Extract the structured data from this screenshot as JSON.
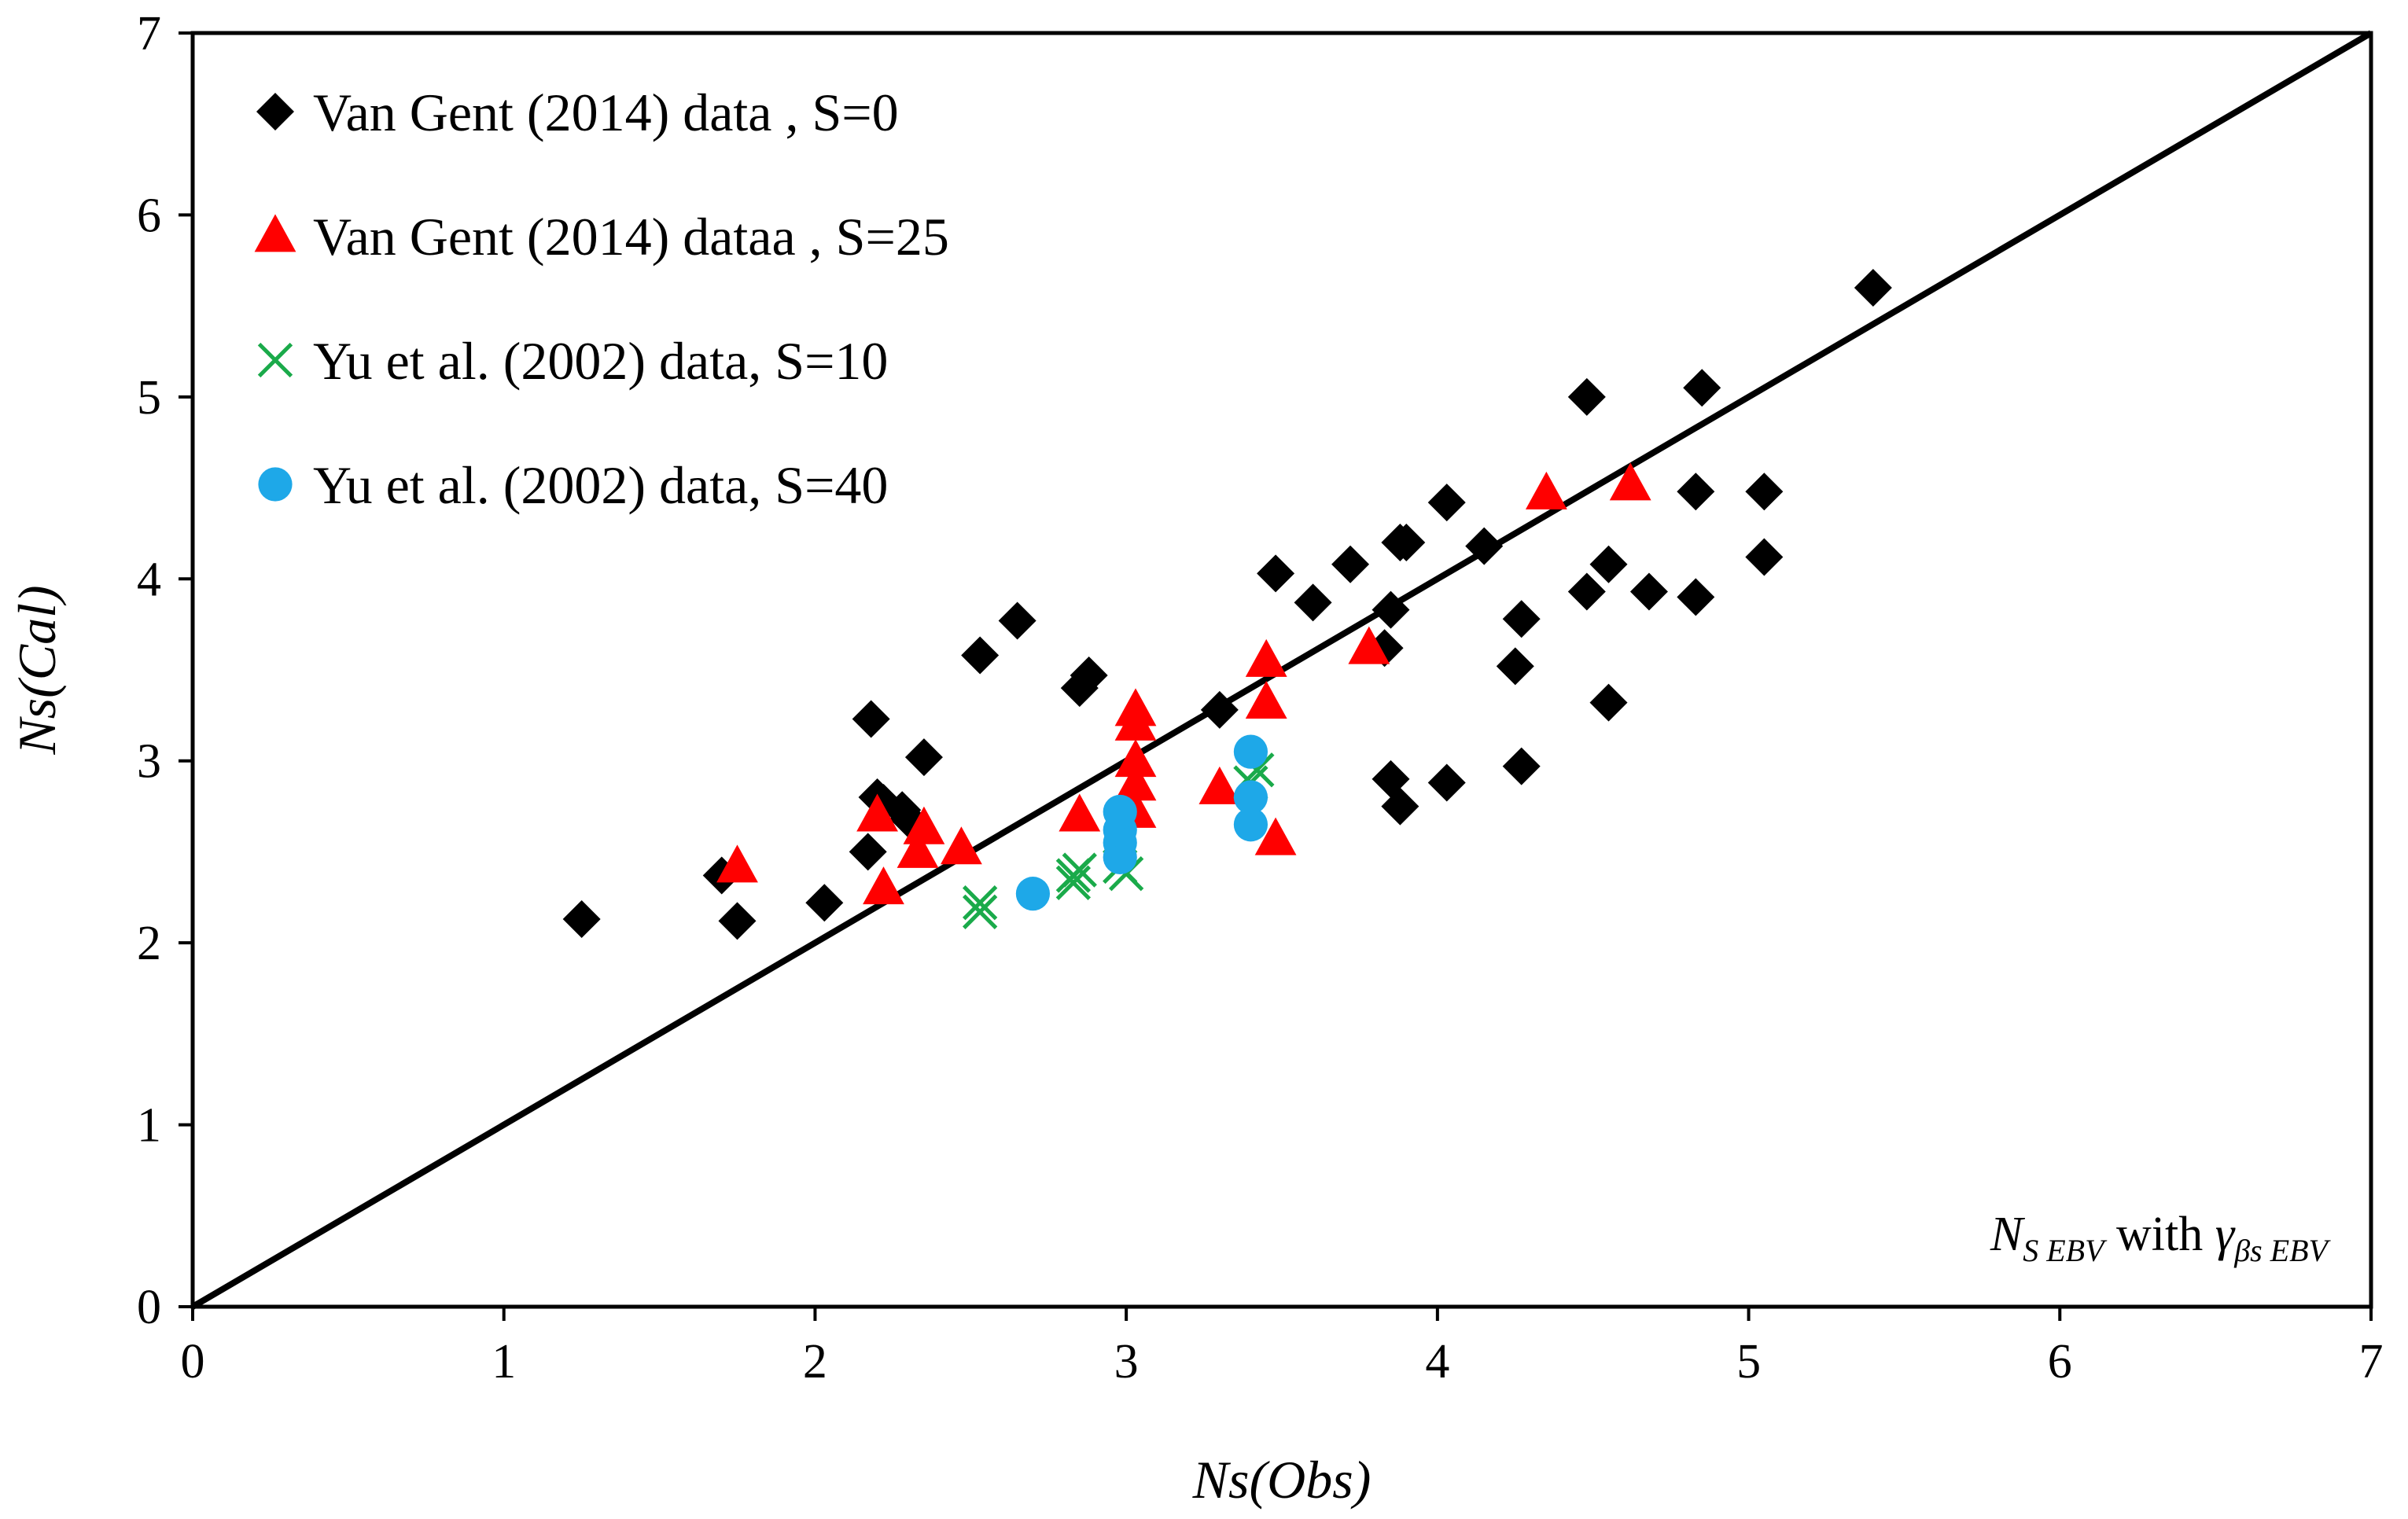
{
  "chart_data": {
    "type": "scatter",
    "title": "",
    "xlabel": "Ns(Obs)",
    "ylabel": "Ns(Cal)",
    "xlim": [
      0,
      7
    ],
    "ylim": [
      0,
      7
    ],
    "xticks": [
      "0",
      "1",
      "2",
      "3",
      "4",
      "5",
      "6",
      "7"
    ],
    "yticks": [
      "0",
      "1",
      "2",
      "3",
      "4",
      "5",
      "6",
      "7"
    ],
    "grid": false,
    "legend_position": "top-left",
    "reference_line": {
      "name": "1:1 line",
      "x": [
        0,
        7
      ],
      "y": [
        0,
        7
      ],
      "color": "#000000"
    },
    "annotation": {
      "n": "N",
      "n_sub": "S EBV",
      "with": " with ",
      "gamma": "γ",
      "gamma_sub": "βs EBV"
    },
    "series": [
      {
        "name": "Van Gent  (2014) data , S=0",
        "marker": "diamond",
        "color": "#000000",
        "x": [
          1.25,
          1.7,
          1.75,
          2.03,
          2.17,
          2.18,
          2.2,
          2.22,
          2.28,
          2.3,
          2.35,
          2.53,
          2.65,
          2.85,
          2.88,
          3.3,
          3.48,
          3.6,
          3.72,
          3.83,
          3.85,
          3.85,
          3.88,
          3.88,
          3.9,
          4.03,
          4.03,
          4.15,
          4.25,
          4.27,
          4.27,
          4.48,
          4.48,
          4.55,
          4.55,
          4.68,
          4.83,
          4.83,
          4.85,
          5.05,
          5.05,
          5.4
        ],
        "y": [
          2.13,
          2.37,
          2.12,
          2.22,
          2.5,
          3.23,
          2.8,
          2.77,
          2.73,
          2.68,
          3.02,
          3.58,
          3.77,
          3.4,
          3.47,
          3.28,
          4.03,
          3.87,
          4.08,
          3.62,
          3.83,
          2.9,
          2.75,
          4.2,
          4.2,
          4.42,
          2.88,
          4.18,
          3.52,
          3.78,
          2.97,
          3.93,
          5.0,
          4.08,
          3.32,
          3.93,
          4.48,
          3.9,
          5.05,
          4.12,
          4.48,
          5.6
        ]
      },
      {
        "name": "Van Gent  (2014) dataa , S=25",
        "marker": "triangle",
        "color": "#ff0000",
        "x": [
          1.75,
          2.2,
          2.22,
          2.33,
          2.35,
          2.47,
          2.85,
          3.03,
          3.03,
          3.03,
          3.03,
          3.03,
          3.3,
          3.45,
          3.45,
          3.48,
          3.78,
          4.35,
          4.62
        ],
        "y": [
          2.42,
          2.7,
          2.3,
          2.5,
          2.63,
          2.52,
          2.7,
          3.28,
          3.2,
          3.0,
          2.87,
          2.72,
          2.85,
          3.55,
          3.32,
          2.57,
          3.62,
          4.47,
          4.52
        ]
      },
      {
        "name": "Yu et al. (2002) data, S=10",
        "marker": "x",
        "color": "#1aaa4a",
        "x": [
          2.53,
          2.53,
          2.83,
          2.83,
          2.85,
          2.98,
          3.0,
          3.4,
          3.42
        ],
        "y": [
          2.17,
          2.22,
          2.33,
          2.37,
          2.4,
          2.42,
          2.38,
          2.88,
          2.95
        ]
      },
      {
        "name": "Yu et al. (2002) data, S=40",
        "marker": "circle",
        "color": "#1ea8e8",
        "x": [
          2.7,
          2.98,
          2.98,
          2.98,
          2.98,
          3.4,
          3.4,
          3.4
        ],
        "y": [
          2.27,
          2.47,
          2.55,
          2.62,
          2.72,
          3.05,
          2.8,
          2.65
        ]
      }
    ]
  }
}
